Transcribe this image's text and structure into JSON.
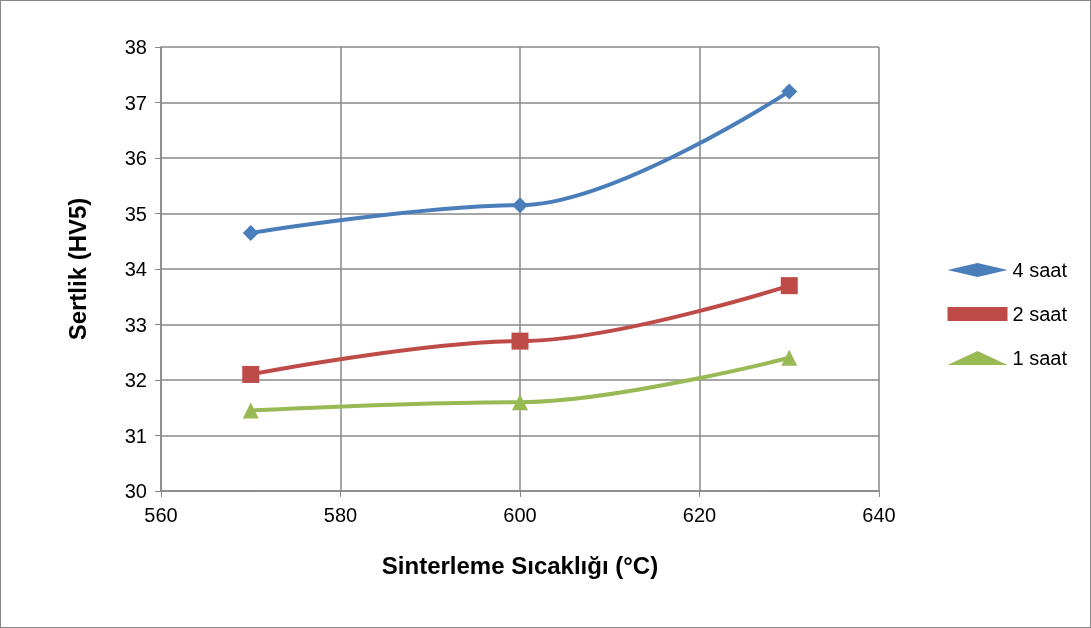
{
  "chart_data": {
    "type": "line",
    "xlabel": "Sinterleme Sıcaklığı (°C)",
    "ylabel": "Sertlik (HV5)",
    "x": [
      570,
      600,
      630
    ],
    "series": [
      {
        "name": "4 saat",
        "color": "#4a7ebb",
        "marker": "diamond",
        "values": [
          34.65,
          35.15,
          37.2
        ]
      },
      {
        "name": "2 saat",
        "color": "#be4b48",
        "marker": "square",
        "values": [
          32.1,
          32.7,
          33.7
        ]
      },
      {
        "name": "1 saat",
        "color": "#98b954",
        "marker": "triangle",
        "values": [
          31.45,
          31.6,
          32.4
        ]
      }
    ],
    "xlim": [
      560,
      640
    ],
    "xticks": [
      560,
      580,
      600,
      620,
      640
    ],
    "ylim": [
      30,
      38
    ],
    "yticks": [
      30,
      31,
      32,
      33,
      34,
      35,
      36,
      37,
      38
    ],
    "grid": true,
    "legend": "right",
    "line_style": "solid"
  }
}
